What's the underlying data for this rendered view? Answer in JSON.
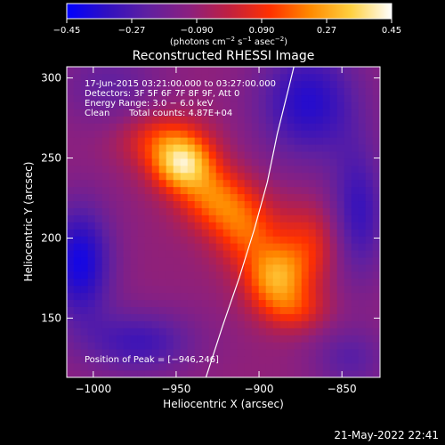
{
  "chart_data": {
    "type": "heatmap",
    "title": "Reconstructed RHESSI Image",
    "xlabel": "Heliocentric X (arcsec)",
    "ylabel": "Heliocentric Y (arcsec)",
    "xlim": [
      -1016,
      -827
    ],
    "ylim": [
      113,
      307
    ],
    "x_ticks": [
      {
        "value": -1000,
        "label": "−1000"
      },
      {
        "value": -950,
        "label": "−950"
      },
      {
        "value": -900,
        "label": "−900"
      },
      {
        "value": -850,
        "label": "−850"
      }
    ],
    "y_ticks": [
      {
        "value": 150,
        "label": "150"
      },
      {
        "value": 200,
        "label": "200"
      },
      {
        "value": 250,
        "label": "250"
      },
      {
        "value": 300,
        "label": "300"
      }
    ],
    "colorbar": {
      "range": [
        -0.45,
        0.45
      ],
      "ticks": [
        {
          "value": -0.45,
          "label": "−0.45"
        },
        {
          "value": -0.27,
          "label": "−0.27"
        },
        {
          "value": -0.09,
          "label": "−0.090"
        },
        {
          "value": 0.09,
          "label": "0.090"
        },
        {
          "value": 0.27,
          "label": "0.27"
        },
        {
          "value": 0.45,
          "label": "0.45"
        }
      ],
      "unit_prefix": "(photons cm",
      "unit_sup1": "−2",
      "unit_mid1": " s",
      "unit_sup2": "−1",
      "unit_mid2": " asec",
      "unit_sup3": "−2",
      "unit_suffix": ")",
      "colors": [
        "#0000ff",
        "#3010c0",
        "#6020a0",
        "#8a2080",
        "#c02040",
        "#ff3000",
        "#ff8a00",
        "#ffd040",
        "#ffffff"
      ]
    },
    "annotations": {
      "time_range": "17‑Jun‑2015 03:21:00.000 to 03:27:00.000",
      "detectors": "Detectors: 3F 5F 6F 7F 8F 9F, Att 0",
      "energy": "Energy Range: 3.0 − 6.0 keV",
      "clean": "Clean",
      "counts": "Total counts: 4.87E+04",
      "peak": "Position of Peak = [−946,246]"
    },
    "sources": [
      {
        "x": -946,
        "y": 246,
        "sx": 13,
        "sy": 12,
        "amp": 0.42
      },
      {
        "x": -927,
        "y": 225,
        "sx": 15,
        "sy": 14,
        "amp": 0.26
      },
      {
        "x": -958,
        "y": 262,
        "sx": 18,
        "sy": 12,
        "amp": 0.2
      },
      {
        "x": -908,
        "y": 205,
        "sx": 14,
        "sy": 16,
        "amp": 0.24
      },
      {
        "x": -890,
        "y": 175,
        "sx": 13,
        "sy": 14,
        "amp": 0.34
      },
      {
        "x": -870,
        "y": 196,
        "sx": 14,
        "sy": 18,
        "amp": 0.18
      },
      {
        "x": -878,
        "y": 155,
        "sx": 14,
        "sy": 10,
        "amp": 0.16
      },
      {
        "x": -990,
        "y": 295,
        "sx": 22,
        "sy": 18,
        "amp": -0.12
      },
      {
        "x": -870,
        "y": 285,
        "sx": 22,
        "sy": 26,
        "amp": -0.26
      },
      {
        "x": -1008,
        "y": 185,
        "sx": 14,
        "sy": 26,
        "amp": -0.3
      },
      {
        "x": -972,
        "y": 135,
        "sx": 24,
        "sy": 14,
        "amp": -0.2
      },
      {
        "x": -840,
        "y": 215,
        "sx": 12,
        "sy": 30,
        "amp": -0.22
      },
      {
        "x": -845,
        "y": 125,
        "sx": 16,
        "sy": 14,
        "amp": -0.14
      }
    ],
    "limb_curve": [
      [
        -932,
        113
      ],
      [
        -922,
        145
      ],
      [
        -912,
        175
      ],
      [
        -903,
        205
      ],
      [
        -895,
        235
      ],
      [
        -889,
        265
      ],
      [
        -883,
        290
      ],
      [
        -879,
        307
      ]
    ]
  },
  "footer": {
    "timestamp": "21‑May‑2022 22:41"
  }
}
